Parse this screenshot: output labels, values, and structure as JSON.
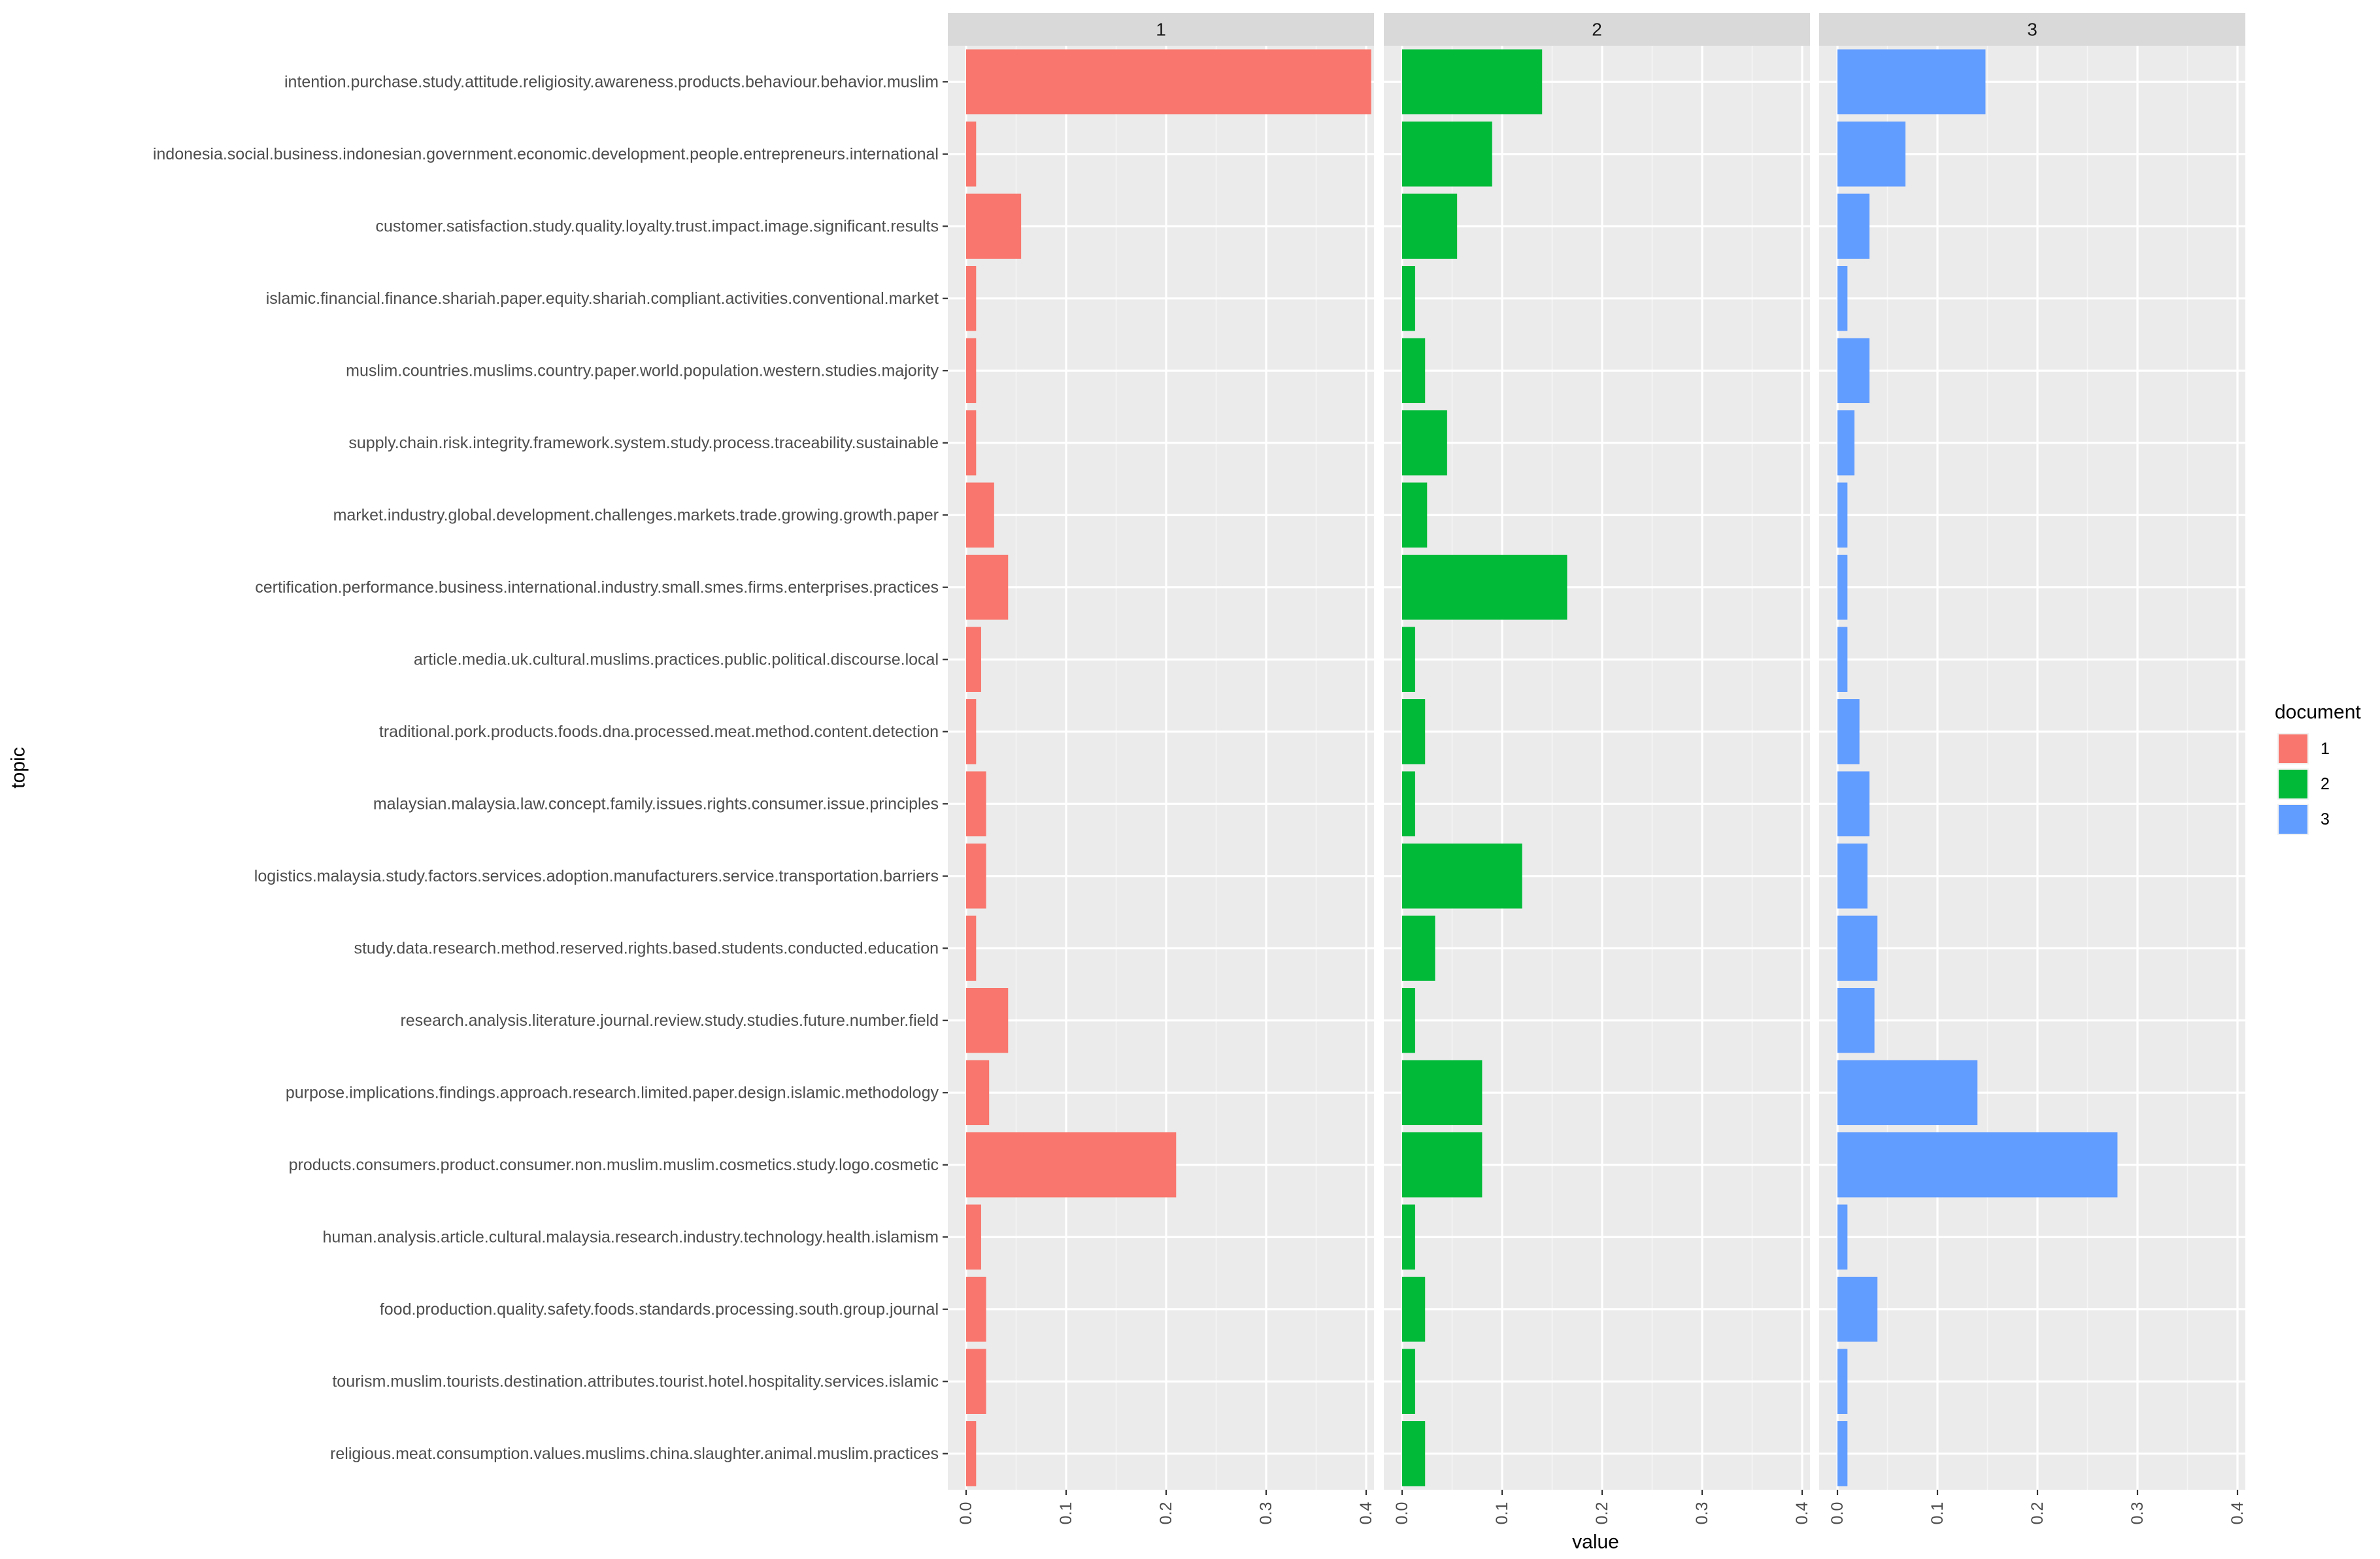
{
  "chart_data": {
    "type": "bar",
    "orientation": "horizontal",
    "facet_by": "document",
    "facets": [
      "1",
      "2",
      "3"
    ],
    "xlabel": "value",
    "ylabel": "topic",
    "xlim": [
      0,
      0.4
    ],
    "xticks": [
      0.0,
      0.1,
      0.2,
      0.3,
      0.4
    ],
    "xtick_labels": [
      "0.0",
      "0.1",
      "0.2",
      "0.3",
      "0.4"
    ],
    "grid": true,
    "legend": {
      "title": "document",
      "position": "right",
      "entries": [
        {
          "label": "1",
          "color": "#F8766D"
        },
        {
          "label": "2",
          "color": "#00BA38"
        },
        {
          "label": "3",
          "color": "#619CFF"
        }
      ]
    },
    "categories": [
      "intention.purchase.study.attitude.religiosity.awareness.products.behaviour.behavior.muslim",
      "indonesia.social.business.indonesian.government.economic.development.people.entrepreneurs.international",
      "customer.satisfaction.study.quality.loyalty.trust.impact.image.significant.results",
      "islamic.financial.finance.shariah.paper.equity.shariah.compliant.activities.conventional.market",
      "muslim.countries.muslims.country.paper.world.population.western.studies.majority",
      "supply.chain.risk.integrity.framework.system.study.process.traceability.sustainable",
      "market.industry.global.development.challenges.markets.trade.growing.growth.paper",
      "certification.performance.business.international.industry.small.smes.firms.enterprises.practices",
      "article.media.uk.cultural.muslims.practices.public.political.discourse.local",
      "traditional.pork.products.foods.dna.processed.meat.method.content.detection",
      "malaysian.malaysia.law.concept.family.issues.rights.consumer.issue.principles",
      "logistics.malaysia.study.factors.services.adoption.manufacturers.service.transportation.barriers",
      "study.data.research.method.reserved.rights.based.students.conducted.education",
      "research.analysis.literature.journal.review.study.studies.future.number.field",
      "purpose.implications.findings.approach.research.limited.paper.design.islamic.methodology",
      "products.consumers.product.consumer.non.muslim.muslim.cosmetics.study.logo.cosmetic",
      "human.analysis.article.cultural.malaysia.research.industry.technology.health.islamism",
      "food.production.quality.safety.foods.standards.processing.south.group.journal",
      "tourism.muslim.tourists.destination.attributes.tourist.hotel.hospitality.services.islamic",
      "religious.meat.consumption.values.muslims.china.slaughter.animal.muslim.practices"
    ],
    "series": [
      {
        "name": "1",
        "color": "#F8766D",
        "values": [
          0.405,
          0.01,
          0.055,
          0.01,
          0.01,
          0.01,
          0.028,
          0.042,
          0.015,
          0.01,
          0.02,
          0.02,
          0.01,
          0.042,
          0.023,
          0.21,
          0.015,
          0.02,
          0.02,
          0.01
        ]
      },
      {
        "name": "2",
        "color": "#00BA38",
        "values": [
          0.14,
          0.09,
          0.055,
          0.013,
          0.023,
          0.045,
          0.025,
          0.165,
          0.013,
          0.023,
          0.013,
          0.12,
          0.033,
          0.013,
          0.08,
          0.08,
          0.013,
          0.023,
          0.013,
          0.023
        ]
      },
      {
        "name": "3",
        "color": "#619CFF",
        "values": [
          0.148,
          0.068,
          0.032,
          0.01,
          0.032,
          0.017,
          0.01,
          0.01,
          0.01,
          0.022,
          0.032,
          0.03,
          0.04,
          0.037,
          0.14,
          0.28,
          0.01,
          0.04,
          0.01,
          0.01
        ]
      }
    ]
  }
}
